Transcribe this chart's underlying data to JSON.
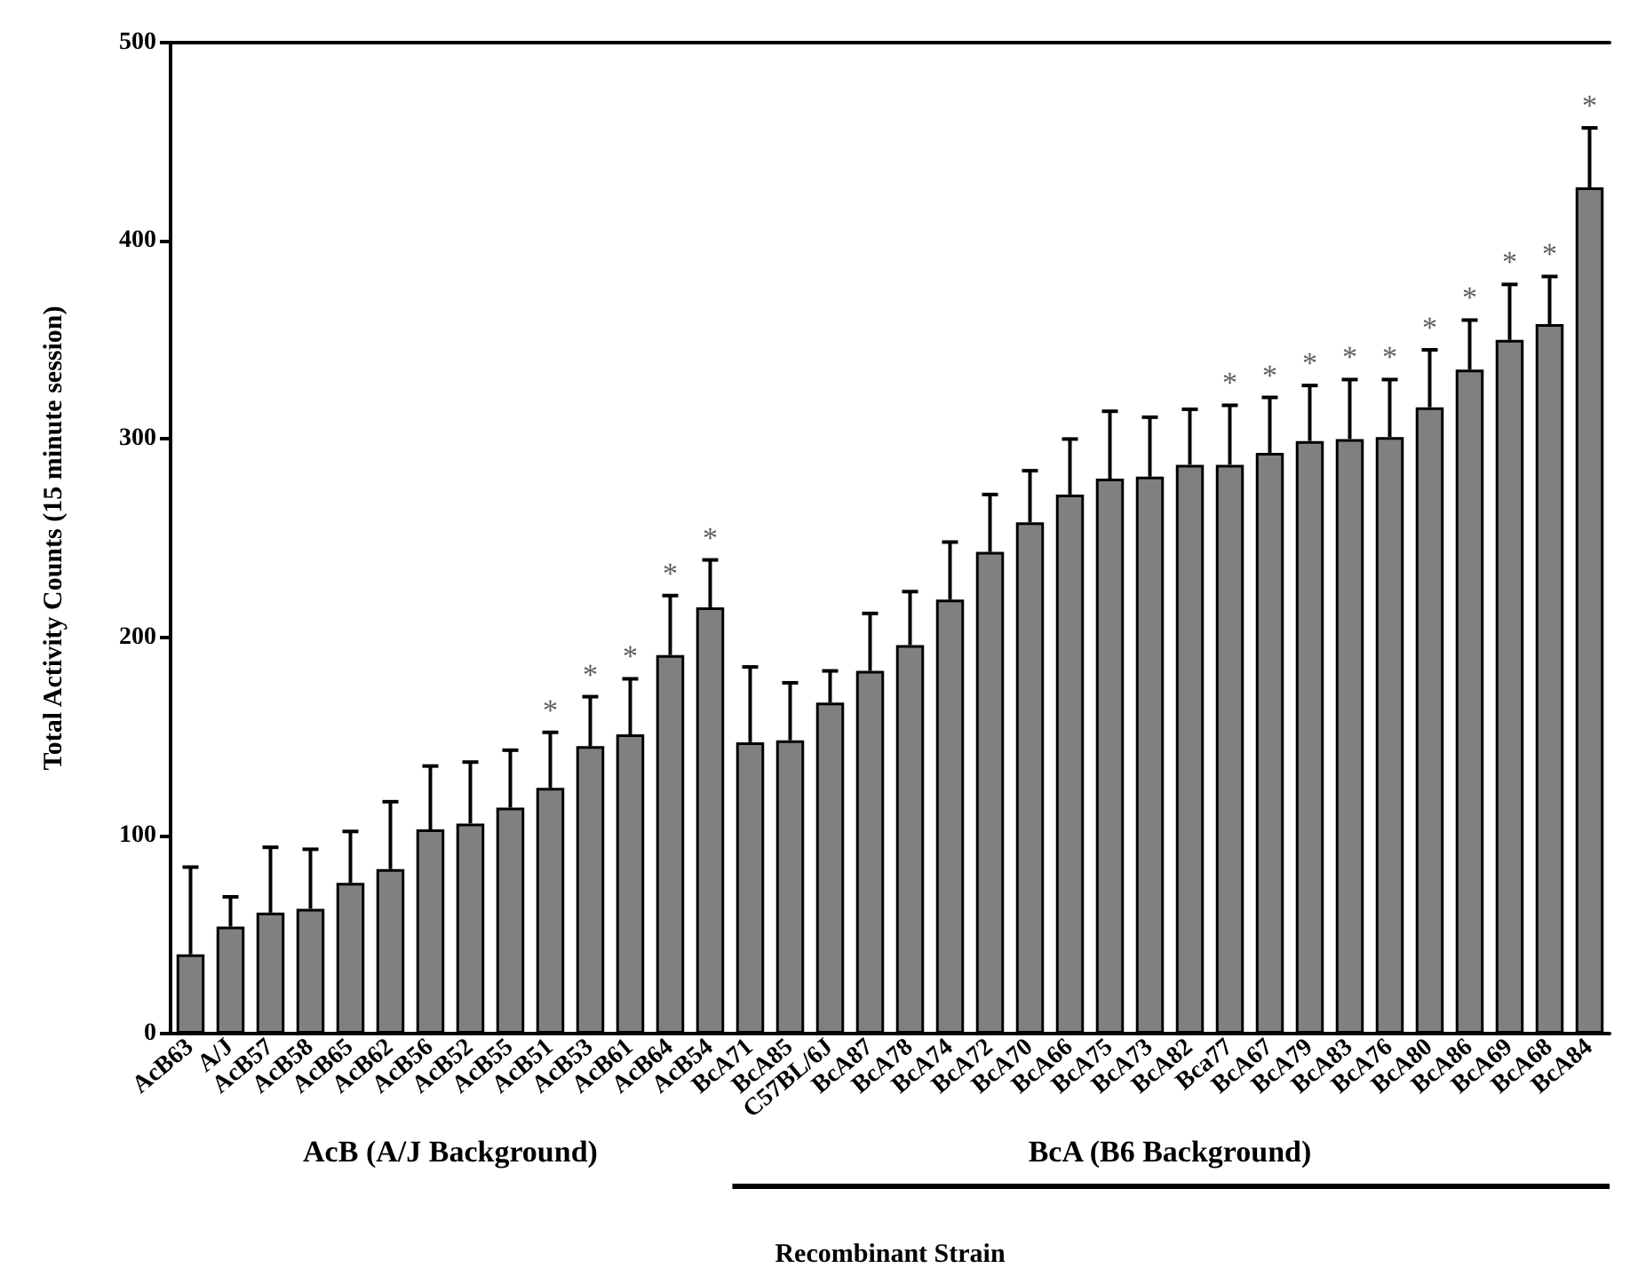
{
  "chart_data": {
    "type": "bar",
    "ylabel": "Total Activity Counts (15 minute session)",
    "xlabel": "Recombinant Strain",
    "categories": [
      "AcB63",
      "A/J",
      "AcB57",
      "AcB58",
      "AcB65",
      "AcB62",
      "AcB56",
      "AcB52",
      "AcB55",
      "AcB51",
      "AcB53",
      "AcB61",
      "AcB64",
      "AcB54",
      "BcA71",
      "BcA85",
      "C57BL/6J",
      "BcA87",
      "BcA78",
      "BcA74",
      "BcA72",
      "BcA70",
      "BcA66",
      "BcA75",
      "BcA73",
      "BcA82",
      "Bca77",
      "BcA67",
      "BcA79",
      "BcA83",
      "BcA76",
      "BcA80",
      "BcA86",
      "BcA69",
      "BcA68",
      "BcA84"
    ],
    "values": [
      40,
      54,
      61,
      63,
      76,
      83,
      103,
      106,
      114,
      124,
      145,
      151,
      191,
      215,
      147,
      148,
      167,
      183,
      196,
      219,
      243,
      258,
      272,
      280,
      281,
      287,
      287,
      293,
      299,
      300,
      301,
      316,
      335,
      350,
      358,
      427
    ],
    "errors": [
      [
        40,
        84
      ],
      [
        54,
        69
      ],
      [
        61,
        94
      ],
      [
        63,
        93
      ],
      [
        76,
        102
      ],
      [
        83,
        117
      ],
      [
        103,
        135
      ],
      [
        106,
        137
      ],
      [
        114,
        143
      ],
      [
        124,
        152
      ],
      [
        145,
        170
      ],
      [
        151,
        179
      ],
      [
        191,
        221
      ],
      [
        215,
        239
      ],
      [
        147,
        185
      ],
      [
        148,
        177
      ],
      [
        167,
        183
      ],
      [
        183,
        212
      ],
      [
        196,
        223
      ],
      [
        219,
        248
      ],
      [
        243,
        272
      ],
      [
        258,
        284
      ],
      [
        272,
        300
      ],
      [
        280,
        314
      ],
      [
        281,
        311
      ],
      [
        287,
        315
      ],
      [
        287,
        317
      ],
      [
        293,
        321
      ],
      [
        299,
        327
      ],
      [
        300,
        330
      ],
      [
        301,
        330
      ],
      [
        316,
        345
      ],
      [
        335,
        360
      ],
      [
        350,
        378
      ],
      [
        358,
        382
      ],
      [
        427,
        457
      ]
    ],
    "color": "#808080",
    "ylim": [
      0,
      500
    ],
    "yticks": [
      0,
      100,
      200,
      300,
      400,
      500
    ],
    "grid": false,
    "annotations": [
      "AcB (A/J Background)",
      "BcA (B6 Background)",
      {
        "text": "*",
        "x": "AcB51",
        "y": 152
      },
      {
        "text": "*",
        "x": "AcB53",
        "y": 170
      },
      {
        "text": "*",
        "x": "AcB61",
        "y": 179
      },
      {
        "text": "*",
        "x": "AcB64",
        "y": 221
      },
      {
        "text": "*",
        "x": "AcB54",
        "y": 239
      },
      {
        "text": "*",
        "x": "Bca77",
        "y": 317
      },
      {
        "text": "*",
        "x": "BcA67",
        "y": 321
      },
      {
        "text": "*",
        "x": "BcA79",
        "y": 327
      },
      {
        "text": "*",
        "x": "BcA83",
        "y": 330
      },
      {
        "text": "*",
        "x": "BcA76",
        "y": 330
      },
      {
        "text": "*",
        "x": "BcA80",
        "y": 345
      },
      {
        "text": "*",
        "x": "BcA86",
        "y": 360
      },
      {
        "text": "*",
        "x": "BcA69",
        "y": 378
      },
      {
        "text": "*",
        "x": "BcA68",
        "y": 382
      },
      {
        "text": "*",
        "x": "BcA84",
        "y": 457
      }
    ]
  }
}
